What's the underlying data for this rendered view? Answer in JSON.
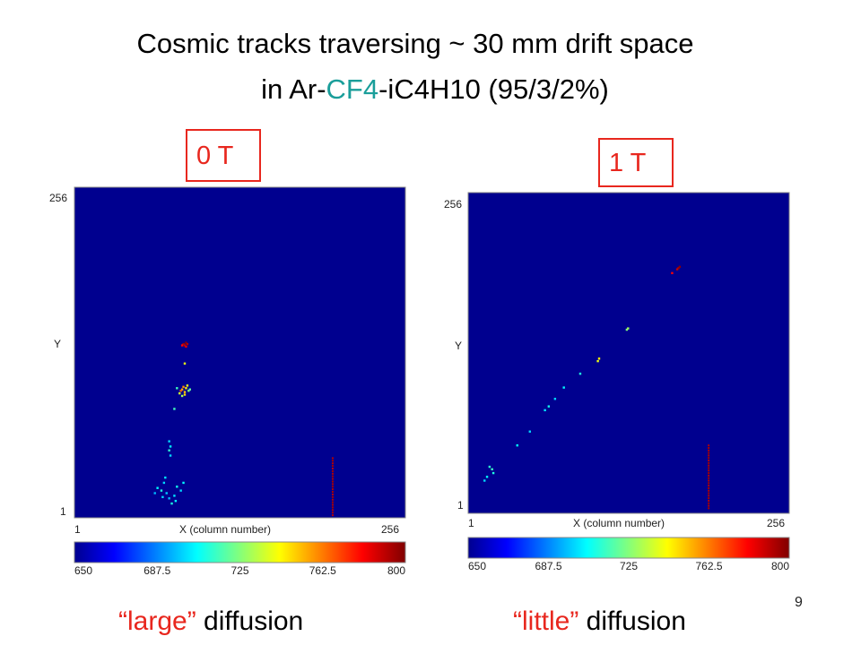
{
  "header": {
    "line1": "Cosmic tracks traversing ~ 30 mm drift space",
    "line2_prefix": "in Ar-",
    "line2_highlight": "CF4",
    "line2_suffix": "-iC4H10 (95/3/2%)",
    "highlight_color": "#1a9e9a"
  },
  "fields": {
    "left": "0 T",
    "right": "1 T"
  },
  "captions": {
    "left_quoted": "“large”",
    "left_rest": " diffusion",
    "right_quoted": "“little”",
    "right_rest": " diffusion"
  },
  "page_number": "9",
  "chart_data": [
    {
      "type": "scatter",
      "xlabel": "X (column number)",
      "ylabel": "Y",
      "x_ticks": [
        "1",
        "256"
      ],
      "y_ticks": [
        "256",
        "1"
      ],
      "xlim": [
        1,
        256
      ],
      "ylim": [
        1,
        256
      ],
      "background_color": "#00008f",
      "colorbar": {
        "min": 650,
        "max": 800,
        "ticks": [
          "650",
          "687.5",
          "725",
          "762.5",
          "800"
        ]
      },
      "points": [
        {
          "x": 85,
          "y": 135,
          "v": 795
        },
        {
          "x": 86,
          "y": 134,
          "v": 790
        },
        {
          "x": 87,
          "y": 136,
          "v": 798
        },
        {
          "x": 88,
          "y": 135,
          "v": 792
        },
        {
          "x": 87,
          "y": 133,
          "v": 785
        },
        {
          "x": 84,
          "y": 134,
          "v": 780
        },
        {
          "x": 86,
          "y": 120,
          "v": 740
        },
        {
          "x": 84,
          "y": 100,
          "v": 755
        },
        {
          "x": 85,
          "y": 102,
          "v": 760
        },
        {
          "x": 83,
          "y": 99,
          "v": 765
        },
        {
          "x": 86,
          "y": 98,
          "v": 750
        },
        {
          "x": 87,
          "y": 101,
          "v": 745
        },
        {
          "x": 82,
          "y": 97,
          "v": 735
        },
        {
          "x": 88,
          "y": 103,
          "v": 740
        },
        {
          "x": 89,
          "y": 99,
          "v": 725
        },
        {
          "x": 84,
          "y": 95,
          "v": 730
        },
        {
          "x": 90,
          "y": 100,
          "v": 720
        },
        {
          "x": 80,
          "y": 101,
          "v": 715
        },
        {
          "x": 86,
          "y": 96,
          "v": 748
        },
        {
          "x": 78,
          "y": 85,
          "v": 715
        },
        {
          "x": 74,
          "y": 60,
          "v": 700
        },
        {
          "x": 75,
          "y": 56,
          "v": 705
        },
        {
          "x": 74,
          "y": 53,
          "v": 712
        },
        {
          "x": 75,
          "y": 49,
          "v": 700
        },
        {
          "x": 70,
          "y": 28,
          "v": 700
        },
        {
          "x": 65,
          "y": 24,
          "v": 705
        },
        {
          "x": 68,
          "y": 22,
          "v": 710
        },
        {
          "x": 72,
          "y": 20,
          "v": 698
        },
        {
          "x": 78,
          "y": 18,
          "v": 702
        },
        {
          "x": 74,
          "y": 16,
          "v": 695
        },
        {
          "x": 80,
          "y": 25,
          "v": 708
        },
        {
          "x": 83,
          "y": 22,
          "v": 700
        },
        {
          "x": 85,
          "y": 28,
          "v": 705
        },
        {
          "x": 69,
          "y": 17,
          "v": 700
        },
        {
          "x": 76,
          "y": 12,
          "v": 710
        },
        {
          "x": 63,
          "y": 20,
          "v": 695
        },
        {
          "x": 71,
          "y": 32,
          "v": 702
        },
        {
          "x": 79,
          "y": 14,
          "v": 705
        }
      ],
      "columns": [
        {
          "x": 200,
          "y_from": 3,
          "y_to": 48,
          "v": 795
        }
      ]
    },
    {
      "type": "scatter",
      "xlabel": "X (column number)",
      "ylabel": "Y",
      "x_ticks": [
        "1",
        "256"
      ],
      "y_ticks": [
        "256",
        "1"
      ],
      "xlim": [
        1,
        256
      ],
      "ylim": [
        1,
        256
      ],
      "background_color": "#00008f",
      "colorbar": {
        "min": 650,
        "max": 800,
        "ticks": [
          "650",
          "687.5",
          "725",
          "762.5",
          "800"
        ]
      },
      "points": [
        {
          "x": 168,
          "y": 196,
          "v": 795
        },
        {
          "x": 169,
          "y": 197,
          "v": 798
        },
        {
          "x": 167,
          "y": 195,
          "v": 790
        },
        {
          "x": 163,
          "y": 192,
          "v": 780
        },
        {
          "x": 128,
          "y": 148,
          "v": 730
        },
        {
          "x": 127,
          "y": 147,
          "v": 725
        },
        {
          "x": 105,
          "y": 124,
          "v": 745
        },
        {
          "x": 104,
          "y": 122,
          "v": 740
        },
        {
          "x": 90,
          "y": 112,
          "v": 710
        },
        {
          "x": 77,
          "y": 101,
          "v": 705
        },
        {
          "x": 70,
          "y": 92,
          "v": 700
        },
        {
          "x": 65,
          "y": 86,
          "v": 708
        },
        {
          "x": 62,
          "y": 83,
          "v": 702
        },
        {
          "x": 50,
          "y": 66,
          "v": 700
        },
        {
          "x": 40,
          "y": 55,
          "v": 705
        },
        {
          "x": 20,
          "y": 36,
          "v": 715
        },
        {
          "x": 18,
          "y": 38,
          "v": 712
        },
        {
          "x": 21,
          "y": 33,
          "v": 710
        },
        {
          "x": 16,
          "y": 30,
          "v": 705
        },
        {
          "x": 14,
          "y": 27,
          "v": 700
        }
      ],
      "columns": [
        {
          "x": 192,
          "y_from": 5,
          "y_to": 55,
          "v": 795
        }
      ]
    }
  ]
}
